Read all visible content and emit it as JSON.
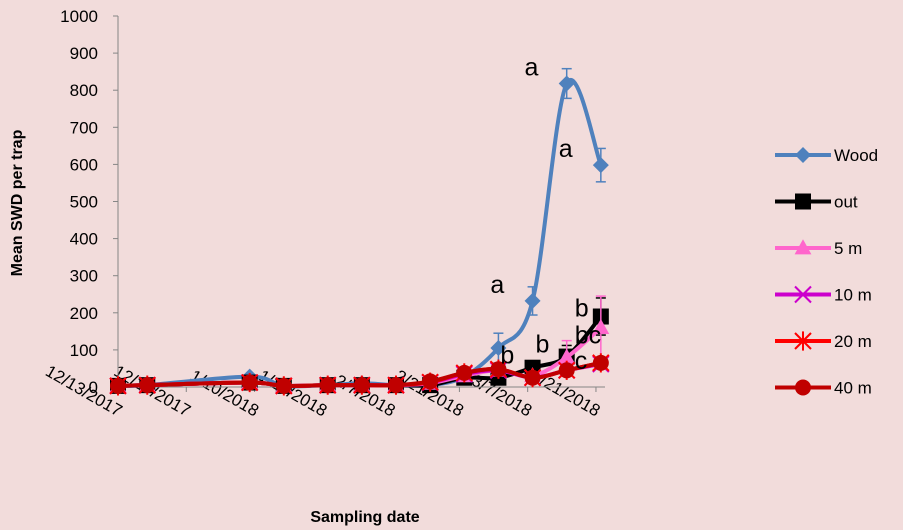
{
  "chart_data": {
    "type": "line",
    "title": "",
    "xlabel": "Sampling date",
    "ylabel": "Mean SWD per trap",
    "ylim": [
      0,
      1000
    ],
    "yticks": [
      "0",
      "100",
      "200",
      "300",
      "400",
      "500",
      "600",
      "700",
      "800",
      "900",
      "1000"
    ],
    "xtick_labels": [
      "12/13/2017",
      "12/27/2017",
      "1/10/2018",
      "1/24/2018",
      "2/7/2018",
      "2/21/2018",
      "3/7/2018",
      "3/21/2018"
    ],
    "x": [
      "12/13/2017",
      "12/19/2017",
      "1/9/2018",
      "1/16/2018",
      "1/25/2018",
      "2/1/2018",
      "2/8/2018",
      "2/15/2018",
      "2/22/2018",
      "3/1/2018",
      "3/8/2018",
      "3/15/2018",
      "3/22/2018"
    ],
    "grid": false,
    "legend_position": "right",
    "series": [
      {
        "name": "Wood",
        "color": "#4f81bd",
        "marker": "diamond",
        "values": [
          3,
          5,
          28,
          3,
          5,
          10,
          5,
          5,
          28,
          105,
          232,
          818,
          598
        ],
        "errors": [
          0,
          0,
          0,
          0,
          0,
          0,
          0,
          0,
          0,
          40,
          38,
          40,
          45
        ]
      },
      {
        "name": "out",
        "color": "#000000",
        "marker": "square",
        "values": [
          3,
          5,
          12,
          3,
          5,
          5,
          5,
          5,
          25,
          25,
          52,
          82,
          190
        ],
        "errors": [
          0,
          0,
          0,
          0,
          0,
          0,
          0,
          0,
          0,
          0,
          0,
          30,
          50
        ]
      },
      {
        "name": "5 m",
        "color": "#ff66cc",
        "marker": "triangle",
        "values": [
          3,
          5,
          12,
          3,
          5,
          5,
          5,
          10,
          30,
          45,
          30,
          80,
          160
        ],
        "errors": [
          0,
          0,
          0,
          0,
          0,
          0,
          0,
          0,
          0,
          0,
          0,
          45,
          85
        ]
      },
      {
        "name": "10 m",
        "color": "#cc00cc",
        "marker": "x",
        "values": [
          3,
          5,
          12,
          3,
          5,
          5,
          5,
          12,
          35,
          45,
          25,
          45,
          62
        ],
        "errors": [
          0,
          0,
          0,
          0,
          0,
          0,
          0,
          0,
          0,
          0,
          0,
          0,
          0
        ]
      },
      {
        "name": "20 m",
        "color": "#ff0000",
        "marker": "star",
        "values": [
          3,
          5,
          12,
          3,
          5,
          5,
          5,
          13,
          38,
          48,
          25,
          45,
          65
        ],
        "errors": [
          0,
          0,
          0,
          0,
          0,
          0,
          0,
          0,
          0,
          0,
          0,
          0,
          0
        ]
      },
      {
        "name": "40 m",
        "color": "#c00000",
        "marker": "circle",
        "values": [
          3,
          5,
          12,
          3,
          5,
          5,
          5,
          15,
          38,
          48,
          25,
          45,
          65
        ],
        "errors": [
          0,
          0,
          0,
          0,
          0,
          0,
          0,
          0,
          0,
          0,
          0,
          0,
          0
        ]
      }
    ],
    "annotations": [
      {
        "text": "a",
        "x": "3/1/2018",
        "y": 232
      },
      {
        "text": "a",
        "x": "3/8/2018",
        "y": 818
      },
      {
        "text": "a",
        "x": "3/15/2018",
        "y": 598
      },
      {
        "text": "b",
        "x": "3/1/2018",
        "y": 52
      },
      {
        "text": "b",
        "x": "3/8/2018",
        "y": 82
      },
      {
        "text": "b",
        "x": "3/15/2018",
        "y": 190
      },
      {
        "text": "bc",
        "x": "3/15/2018",
        "y": 160
      },
      {
        "text": "c",
        "x": "3/15/2018",
        "y": 65
      }
    ]
  }
}
